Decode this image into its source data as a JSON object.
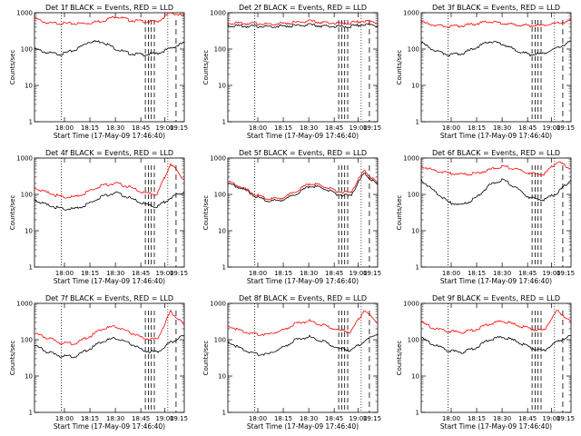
{
  "chart_data": [
    {
      "type": "line",
      "title": "Det 1f BLACK = Events, RED = LLD",
      "xlabel": "Start Time (17-May-09 17:46:40)",
      "ylabel": "Counts/sec",
      "ylim": [
        1,
        1000
      ],
      "yscale": "log",
      "x_ticks": [
        "18:00",
        "18:15",
        "18:30",
        "18:45",
        "19:00",
        "19:15"
      ],
      "y_ticks": [
        "1",
        "10",
        "100",
        "1000"
      ],
      "series": [
        {
          "name": "BLACK",
          "color": "#000000",
          "values": [
            100,
            78,
            72,
            95,
            160,
            160,
            100,
            75,
            70,
            75,
            105,
            150
          ]
        },
        {
          "name": "RED",
          "color": "#ff0000",
          "values": [
            700,
            510,
            510,
            500,
            520,
            600,
            800,
            620,
            580,
            560,
            1000,
            800
          ]
        }
      ]
    },
    {
      "type": "line",
      "title": "Det 2f BLACK = Events, RED = LLD",
      "xlabel": "Start Time (17-May-09 17:46:40)",
      "ylabel": "Counts/sec",
      "ylim": [
        1,
        1000
      ],
      "yscale": "log",
      "x_ticks": [
        "18:00",
        "18:15",
        "18:30",
        "18:45",
        "19:00",
        "19:15"
      ],
      "y_ticks": [
        "1",
        "10",
        "100",
        "1000"
      ],
      "series": [
        {
          "name": "BLACK",
          "color": "#000000",
          "values": [
            450,
            420,
            420,
            420,
            430,
            440,
            460,
            430,
            420,
            420,
            480,
            450
          ]
        },
        {
          "name": "RED",
          "color": "#ff0000",
          "values": [
            530,
            500,
            500,
            490,
            510,
            540,
            580,
            540,
            520,
            520,
            600,
            550
          ]
        }
      ]
    },
    {
      "type": "line",
      "title": "Det 3f BLACK = Events, RED = LLD",
      "xlabel": "Start Time (17-May-09 17:46:40)",
      "ylabel": "Counts/sec",
      "ylim": [
        1,
        1000
      ],
      "yscale": "log",
      "x_ticks": [
        "18:00",
        "18:15",
        "18:30",
        "18:45",
        "19:00",
        "19:15"
      ],
      "y_ticks": [
        "1",
        "10",
        "100",
        "1000"
      ],
      "series": [
        {
          "name": "BLACK",
          "color": "#000000",
          "values": [
            150,
            90,
            70,
            75,
            110,
            160,
            140,
            90,
            70,
            75,
            110,
            160
          ]
        },
        {
          "name": "RED",
          "color": "#ff0000",
          "values": [
            550,
            450,
            420,
            440,
            500,
            560,
            520,
            460,
            440,
            450,
            520,
            600
          ]
        }
      ]
    },
    {
      "type": "line",
      "title": "Det 4f BLACK = Events, RED = LLD",
      "xlabel": "Start Time (17-May-09 17:46:40)",
      "ylabel": "Counts/sec",
      "ylim": [
        1,
        1000
      ],
      "yscale": "log",
      "x_ticks": [
        "18:00",
        "18:15",
        "18:30",
        "18:45",
        "19:00",
        "19:15"
      ],
      "y_ticks": [
        "1",
        "10",
        "100",
        "1000"
      ],
      "series": [
        {
          "name": "BLACK",
          "color": "#000000",
          "values": [
            70,
            50,
            40,
            40,
            55,
            90,
            110,
            80,
            55,
            45,
            80,
            120
          ]
        },
        {
          "name": "RED",
          "color": "#ff0000",
          "values": [
            150,
            110,
            85,
            85,
            120,
            180,
            200,
            160,
            110,
            100,
            700,
            250
          ]
        }
      ]
    },
    {
      "type": "line",
      "title": "Det 5f BLACK = Events, RED = LLD",
      "xlabel": "Start Time (17-May-09 17:46:40)",
      "ylabel": "Counts/sec",
      "ylim": [
        1,
        1000
      ],
      "yscale": "log",
      "x_ticks": [
        "18:00",
        "18:15",
        "18:30",
        "18:45",
        "19:00",
        "19:15"
      ],
      "y_ticks": [
        "1",
        "10",
        "100",
        "1000"
      ],
      "series": [
        {
          "name": "BLACK",
          "color": "#000000",
          "values": [
            200,
            150,
            90,
            65,
            70,
            100,
            170,
            150,
            100,
            90,
            380,
            180
          ]
        },
        {
          "name": "RED",
          "color": "#ff0000",
          "values": [
            230,
            160,
            100,
            75,
            80,
            120,
            200,
            170,
            120,
            110,
            450,
            200
          ]
        }
      ]
    },
    {
      "type": "line",
      "title": "Det 6f BLACK = Events, RED = LLD",
      "xlabel": "Start Time (17-May-09 17:46:40)",
      "ylabel": "Counts/sec",
      "ylim": [
        1,
        1000
      ],
      "yscale": "log",
      "x_ticks": [
        "18:00",
        "18:15",
        "18:30",
        "18:45",
        "19:00",
        "19:15"
      ],
      "y_ticks": [
        "1",
        "10",
        "100",
        "1000"
      ],
      "series": [
        {
          "name": "BLACK",
          "color": "#000000",
          "values": [
            250,
            120,
            60,
            50,
            80,
            180,
            260,
            150,
            80,
            70,
            110,
            250
          ]
        },
        {
          "name": "RED",
          "color": "#ff0000",
          "values": [
            600,
            450,
            380,
            350,
            380,
            480,
            600,
            500,
            380,
            350,
            800,
            500
          ]
        }
      ]
    },
    {
      "type": "line",
      "title": "Det 7f BLACK = Events, RED = LLD",
      "xlabel": "Start Time (17-May-09 17:46:40)",
      "ylabel": "Counts/sec",
      "ylim": [
        1,
        1000
      ],
      "yscale": "log",
      "x_ticks": [
        "18:00",
        "18:15",
        "18:30",
        "18:45",
        "19:00",
        "19:15"
      ],
      "y_ticks": [
        "1",
        "10",
        "100",
        "1000"
      ],
      "series": [
        {
          "name": "BLACK",
          "color": "#000000",
          "values": [
            70,
            45,
            35,
            35,
            55,
            90,
            110,
            80,
            50,
            45,
            85,
            130
          ]
        },
        {
          "name": "RED",
          "color": "#ff0000",
          "values": [
            150,
            110,
            80,
            80,
            120,
            200,
            230,
            160,
            110,
            100,
            600,
            250
          ]
        }
      ]
    },
    {
      "type": "line",
      "title": "Det 8f BLACK = Events, RED = LLD",
      "xlabel": "Start Time (17-May-09 17:46:40)",
      "ylabel": "Counts/sec",
      "ylim": [
        1,
        1000
      ],
      "yscale": "log",
      "x_ticks": [
        "18:00",
        "18:15",
        "18:30",
        "18:45",
        "19:00",
        "19:15"
      ],
      "y_ticks": [
        "1",
        "10",
        "100",
        "1000"
      ],
      "series": [
        {
          "name": "BLACK",
          "color": "#000000",
          "values": [
            90,
            55,
            40,
            40,
            60,
            100,
            120,
            90,
            60,
            50,
            90,
            150
          ]
        },
        {
          "name": "RED",
          "color": "#ff0000",
          "values": [
            250,
            170,
            140,
            140,
            180,
            280,
            330,
            250,
            190,
            160,
            650,
            300
          ]
        }
      ]
    },
    {
      "type": "line",
      "title": "Det 9f BLACK = Events, RED = LLD",
      "xlabel": "Start Time (17-May-09 17:46:40)",
      "ylabel": "Counts/sec",
      "ylim": [
        1,
        1000
      ],
      "yscale": "log",
      "x_ticks": [
        "18:00",
        "18:15",
        "18:30",
        "18:45",
        "19:00",
        "19:15"
      ],
      "y_ticks": [
        "1",
        "10",
        "100",
        "1000"
      ],
      "series": [
        {
          "name": "BLACK",
          "color": "#000000",
          "values": [
            110,
            70,
            50,
            45,
            60,
            100,
            120,
            90,
            60,
            50,
            90,
            130
          ]
        },
        {
          "name": "RED",
          "color": "#ff0000",
          "values": [
            300,
            200,
            170,
            160,
            190,
            270,
            330,
            250,
            200,
            180,
            650,
            300
          ]
        }
      ]
    }
  ]
}
